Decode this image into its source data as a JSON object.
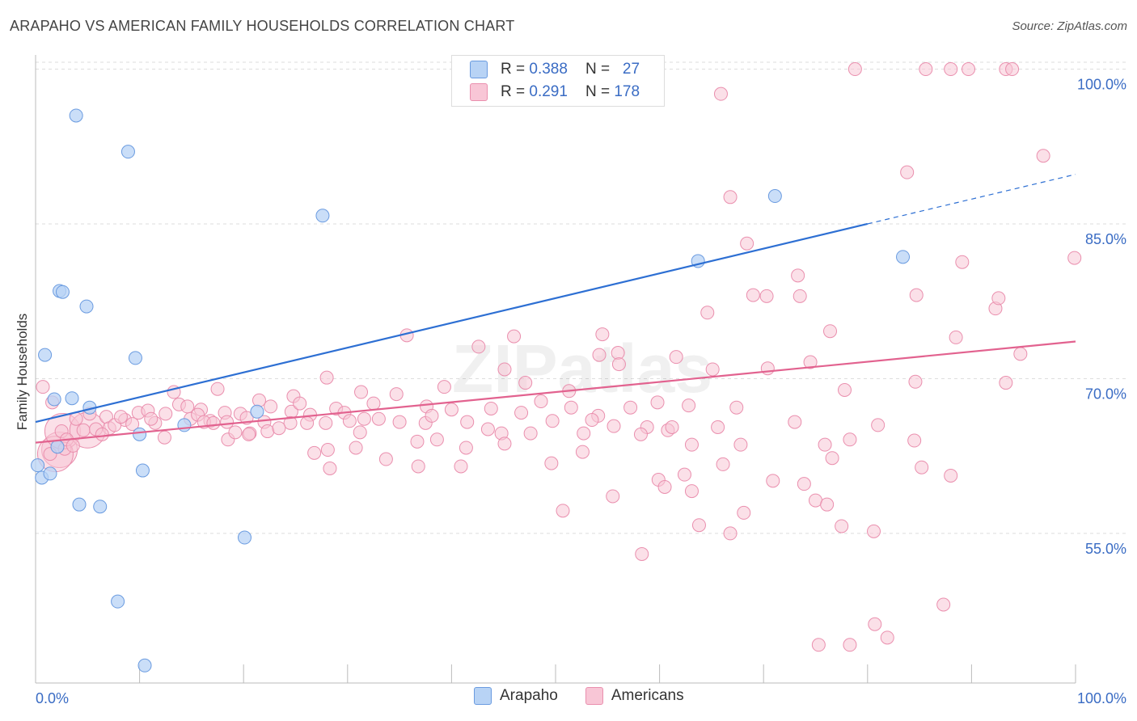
{
  "header": {
    "title": "ARAPAHO VS AMERICAN FAMILY HOUSEHOLDS CORRELATION CHART",
    "source": "Source: ZipAtlas.com"
  },
  "legend": {
    "rows": [
      {
        "r_label": "R =",
        "r_value": "0.388",
        "n_label": "N =",
        "n_value": "27"
      },
      {
        "r_label": "R =",
        "r_value": "0.291",
        "n_label": "N =",
        "n_value": "178"
      }
    ],
    "bottom": [
      "Arapaho",
      "Americans"
    ]
  },
  "colors": {
    "arapaho_fill": "#b8d3f5",
    "arapaho_stroke": "#6a9be0",
    "arapaho_line": "#2d6fd3",
    "americans_fill": "#f8c6d6",
    "americans_stroke": "#ea8fae",
    "americans_line": "#e2628f",
    "axis_text": "#3a6cc4",
    "grid": "#dddddd"
  },
  "chart_data": {
    "type": "scatter",
    "title": "ARAPAHO VS AMERICAN FAMILY HOUSEHOLDS CORRELATION CHART",
    "xlabel": "",
    "ylabel": "Family Households",
    "xlim": [
      0,
      100
    ],
    "ylim": [
      40.5,
      102
    ],
    "x_tick_labels": [
      "0.0%",
      "100.0%"
    ],
    "y_ticks": [
      55,
      70,
      85,
      100
    ],
    "y_tick_labels": [
      "55.0%",
      "70.0%",
      "85.0%",
      "100.0%"
    ],
    "watermark": "ZIPatlas",
    "series": [
      {
        "name": "Arapaho",
        "r": 0.388,
        "n": 27,
        "trend": {
          "x0": 0,
          "y0": 65.8,
          "x1": 80,
          "y1": 85.0,
          "dash_to_x": 100,
          "dash_to_y": 89.8
        },
        "points": [
          [
            3.9,
            95.5
          ],
          [
            8.9,
            92.0
          ],
          [
            27.6,
            85.8
          ],
          [
            71.1,
            87.7
          ],
          [
            83.4,
            81.8
          ],
          [
            63.7,
            81.4
          ],
          [
            2.3,
            78.5
          ],
          [
            2.6,
            78.4
          ],
          [
            4.9,
            77.0
          ],
          [
            0.9,
            72.3
          ],
          [
            9.6,
            72.0
          ],
          [
            1.8,
            68.0
          ],
          [
            3.5,
            68.1
          ],
          [
            5.2,
            67.2
          ],
          [
            21.3,
            66.8
          ],
          [
            14.3,
            65.5
          ],
          [
            10.0,
            64.6
          ],
          [
            2.1,
            63.4
          ],
          [
            0.2,
            61.6
          ],
          [
            0.6,
            60.4
          ],
          [
            1.4,
            60.8
          ],
          [
            10.3,
            61.1
          ],
          [
            4.2,
            57.8
          ],
          [
            6.2,
            57.6
          ],
          [
            20.1,
            54.6
          ],
          [
            7.9,
            48.4
          ],
          [
            10.5,
            42.2
          ]
        ]
      },
      {
        "name": "Americans",
        "r": 0.291,
        "n": 178,
        "trend": {
          "x0": 0,
          "y0": 63.8,
          "x1": 100,
          "y1": 73.6
        },
        "points": [
          [
            78.8,
            100
          ],
          [
            85.6,
            100
          ],
          [
            88.0,
            100
          ],
          [
            89.7,
            100
          ],
          [
            93.3,
            100
          ],
          [
            93.9,
            100
          ],
          [
            65.9,
            97.6
          ],
          [
            96.9,
            91.6
          ],
          [
            83.8,
            90.0
          ],
          [
            66.8,
            87.6
          ],
          [
            68.4,
            83.1
          ],
          [
            99.9,
            81.7
          ],
          [
            89.1,
            81.3
          ],
          [
            73.3,
            80.0
          ],
          [
            69.0,
            78.1
          ],
          [
            70.3,
            78.0
          ],
          [
            73.5,
            78.0
          ],
          [
            84.7,
            78.1
          ],
          [
            92.3,
            76.8
          ],
          [
            92.6,
            77.8
          ],
          [
            64.6,
            76.4
          ],
          [
            76.4,
            74.6
          ],
          [
            88.5,
            74.0
          ],
          [
            35.7,
            74.2
          ],
          [
            46.0,
            74.1
          ],
          [
            54.5,
            74.3
          ],
          [
            42.6,
            73.1
          ],
          [
            56.0,
            72.5
          ],
          [
            54.2,
            72.3
          ],
          [
            61.6,
            72.1
          ],
          [
            94.7,
            72.4
          ],
          [
            74.5,
            71.6
          ],
          [
            70.4,
            71.0
          ],
          [
            65.1,
            70.9
          ],
          [
            56.1,
            71.4
          ],
          [
            28.0,
            70.1
          ],
          [
            45.1,
            70.9
          ],
          [
            84.6,
            69.7
          ],
          [
            93.3,
            69.6
          ],
          [
            77.8,
            68.9
          ],
          [
            0.7,
            69.2
          ],
          [
            13.3,
            68.7
          ],
          [
            17.5,
            69.0
          ],
          [
            21.5,
            67.9
          ],
          [
            24.8,
            68.3
          ],
          [
            31.3,
            68.7
          ],
          [
            34.7,
            68.5
          ],
          [
            39.3,
            69.2
          ],
          [
            47.1,
            69.6
          ],
          [
            51.3,
            68.8
          ],
          [
            1.6,
            67.7
          ],
          [
            5.2,
            66.6
          ],
          [
            9.9,
            66.7
          ],
          [
            12.5,
            66.6
          ],
          [
            15.9,
            67.0
          ],
          [
            18.2,
            66.7
          ],
          [
            19.7,
            66.6
          ],
          [
            22.6,
            67.3
          ],
          [
            24.6,
            66.8
          ],
          [
            26.4,
            66.5
          ],
          [
            28.9,
            67.1
          ],
          [
            32.5,
            67.6
          ],
          [
            37.6,
            67.3
          ],
          [
            40.0,
            67.0
          ],
          [
            43.8,
            67.1
          ],
          [
            46.7,
            66.7
          ],
          [
            48.6,
            67.8
          ],
          [
            51.5,
            67.2
          ],
          [
            54.1,
            66.4
          ],
          [
            59.8,
            67.7
          ],
          [
            62.8,
            67.4
          ],
          [
            67.4,
            67.2
          ],
          [
            3.9,
            66.1
          ],
          [
            6.8,
            66.3
          ],
          [
            8.6,
            66.0
          ],
          [
            11.5,
            65.7
          ],
          [
            14.9,
            66.1
          ],
          [
            16.8,
            65.9
          ],
          [
            18.4,
            65.8
          ],
          [
            20.3,
            66.2
          ],
          [
            22.0,
            65.8
          ],
          [
            24.5,
            65.7
          ],
          [
            26.1,
            65.7
          ],
          [
            27.9,
            65.7
          ],
          [
            31.6,
            66.1
          ],
          [
            35.0,
            65.8
          ],
          [
            37.5,
            65.7
          ],
          [
            41.5,
            65.8
          ],
          [
            43.5,
            65.1
          ],
          [
            44.8,
            64.7
          ],
          [
            47.6,
            64.7
          ],
          [
            49.7,
            65.9
          ],
          [
            52.7,
            64.7
          ],
          [
            55.6,
            65.4
          ],
          [
            58.8,
            65.3
          ],
          [
            65.6,
            65.3
          ],
          [
            73.0,
            65.8
          ],
          [
            2.5,
            64.9
          ],
          [
            4.6,
            65.0
          ],
          [
            7.1,
            65.2
          ],
          [
            9.3,
            65.6
          ],
          [
            12.4,
            64.3
          ],
          [
            18.5,
            64.1
          ],
          [
            20.6,
            64.7
          ],
          [
            28.1,
            63.1
          ],
          [
            30.8,
            63.3
          ],
          [
            36.7,
            63.9
          ],
          [
            38.6,
            64.1
          ],
          [
            41.4,
            63.3
          ],
          [
            52.6,
            62.9
          ],
          [
            58.2,
            64.6
          ],
          [
            60.8,
            65.0
          ],
          [
            63.1,
            63.6
          ],
          [
            67.8,
            63.6
          ],
          [
            75.9,
            63.6
          ],
          [
            78.3,
            64.1
          ],
          [
            84.5,
            64.0
          ],
          [
            1.4,
            62.7
          ],
          [
            2.8,
            63.2
          ],
          [
            26.8,
            62.8
          ],
          [
            33.7,
            62.2
          ],
          [
            36.8,
            61.5
          ],
          [
            49.6,
            61.8
          ],
          [
            28.3,
            61.3
          ],
          [
            59.9,
            60.2
          ],
          [
            62.4,
            60.7
          ],
          [
            66.1,
            61.7
          ],
          [
            76.6,
            62.3
          ],
          [
            85.2,
            61.4
          ],
          [
            88.0,
            60.6
          ],
          [
            70.9,
            60.1
          ],
          [
            73.9,
            59.8
          ],
          [
            60.5,
            59.5
          ],
          [
            63.1,
            59.1
          ],
          [
            75.0,
            58.2
          ],
          [
            76.1,
            57.8
          ],
          [
            55.5,
            58.6
          ],
          [
            50.7,
            57.2
          ],
          [
            68.1,
            57.0
          ],
          [
            63.8,
            55.8
          ],
          [
            77.5,
            55.7
          ],
          [
            66.8,
            55.0
          ],
          [
            80.6,
            55.2
          ],
          [
            58.3,
            53.0
          ],
          [
            87.3,
            48.1
          ],
          [
            80.7,
            46.2
          ],
          [
            81.9,
            44.9
          ],
          [
            75.3,
            44.2
          ],
          [
            78.3,
            44.2
          ],
          [
            20.5,
            64.6
          ],
          [
            22.3,
            64.9
          ],
          [
            31.2,
            64.8
          ],
          [
            45.1,
            63.7
          ],
          [
            53.5,
            66.0
          ],
          [
            57.2,
            67.2
          ],
          [
            61.2,
            65.3
          ],
          [
            40.9,
            61.5
          ],
          [
            81.0,
            65.5
          ],
          [
            3.0,
            64.1
          ],
          [
            3.6,
            63.5
          ],
          [
            5.8,
            65.1
          ],
          [
            6.4,
            64.6
          ],
          [
            7.6,
            65.5
          ],
          [
            8.2,
            66.3
          ],
          [
            10.8,
            66.9
          ],
          [
            11.1,
            66.1
          ],
          [
            13.8,
            67.5
          ],
          [
            14.6,
            67.3
          ],
          [
            15.6,
            66.5
          ],
          [
            16.2,
            65.8
          ],
          [
            17.1,
            65.7
          ],
          [
            19.2,
            64.8
          ],
          [
            23.4,
            65.2
          ],
          [
            25.4,
            67.6
          ],
          [
            29.7,
            66.7
          ],
          [
            30.2,
            65.9
          ],
          [
            33.0,
            66.1
          ],
          [
            38.1,
            66.4
          ]
        ],
        "large_points": [
          [
            2.3,
            63.1
          ],
          [
            1.9,
            62.7
          ],
          [
            2.6,
            64.9
          ],
          [
            5.0,
            65.0
          ]
        ]
      }
    ]
  }
}
